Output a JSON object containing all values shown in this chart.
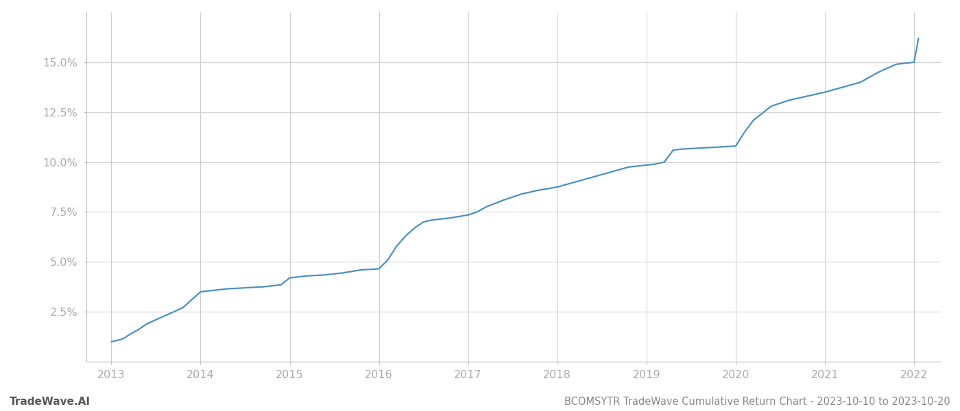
{
  "title": "BCOMSYTR TradeWave Cumulative Return Chart - 2023-10-10 to 2023-10-20",
  "watermark": "TradeWave.AI",
  "line_color": "#4a90c4",
  "background_color": "#ffffff",
  "grid_color": "#cccccc",
  "x_years": [
    2013,
    2014,
    2015,
    2016,
    2017,
    2018,
    2019,
    2020,
    2021,
    2022
  ],
  "x_data": [
    2013.0,
    2013.05,
    2013.1,
    2013.15,
    2013.2,
    2013.3,
    2013.4,
    2013.5,
    2013.6,
    2013.7,
    2013.8,
    2013.9,
    2014.0,
    2014.1,
    2014.2,
    2014.3,
    2014.5,
    2014.7,
    2014.9,
    2015.0,
    2015.1,
    2015.2,
    2015.4,
    2015.6,
    2015.8,
    2016.0,
    2016.1,
    2016.2,
    2016.3,
    2016.4,
    2016.5,
    2016.6,
    2016.8,
    2017.0,
    2017.1,
    2017.2,
    2017.4,
    2017.6,
    2017.8,
    2018.0,
    2018.2,
    2018.4,
    2018.6,
    2018.8,
    2019.0,
    2019.1,
    2019.2,
    2019.25,
    2019.3,
    2019.4,
    2019.6,
    2019.8,
    2020.0,
    2020.1,
    2020.2,
    2020.4,
    2020.6,
    2020.8,
    2021.0,
    2021.2,
    2021.4,
    2021.6,
    2021.8,
    2022.0,
    2022.05
  ],
  "y_data": [
    1.0,
    1.05,
    1.1,
    1.2,
    1.35,
    1.6,
    1.9,
    2.1,
    2.3,
    2.5,
    2.7,
    3.1,
    3.5,
    3.55,
    3.6,
    3.65,
    3.7,
    3.75,
    3.85,
    4.2,
    4.25,
    4.3,
    4.35,
    4.45,
    4.6,
    4.65,
    5.1,
    5.8,
    6.3,
    6.7,
    7.0,
    7.1,
    7.2,
    7.35,
    7.5,
    7.75,
    8.1,
    8.4,
    8.6,
    8.75,
    9.0,
    9.25,
    9.5,
    9.75,
    9.85,
    9.9,
    10.0,
    10.3,
    10.6,
    10.65,
    10.7,
    10.75,
    10.8,
    11.5,
    12.1,
    12.8,
    13.1,
    13.3,
    13.5,
    13.75,
    14.0,
    14.5,
    14.9,
    15.0,
    16.2
  ],
  "yticks": [
    2.5,
    5.0,
    7.5,
    10.0,
    12.5,
    15.0
  ],
  "ylim": [
    0,
    17.5
  ],
  "xlim": [
    2012.72,
    2022.3
  ],
  "title_fontsize": 10.5,
  "watermark_fontsize": 11,
  "tick_fontsize": 11.5,
  "tick_color": "#aaaaaa",
  "line_width": 1.6
}
